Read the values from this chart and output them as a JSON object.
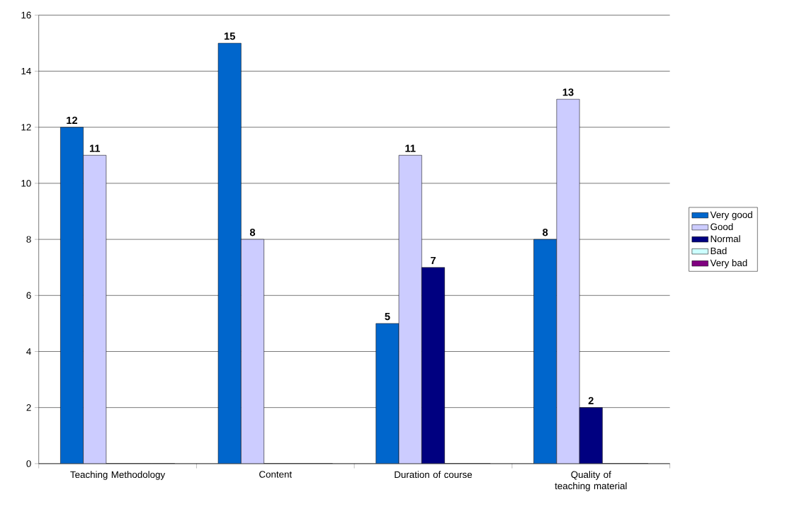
{
  "chart_data": {
    "type": "bar",
    "categories": [
      "Teaching Methodology",
      "Content",
      "Duration of course",
      "Quality of teaching material"
    ],
    "series": [
      {
        "name": "Very good",
        "color": "#0066cc",
        "values": [
          12,
          15,
          5,
          8
        ],
        "value_labels": [
          "12",
          "15",
          "5",
          "8"
        ]
      },
      {
        "name": "Good",
        "color": "#ccccff",
        "values": [
          11,
          8,
          11,
          13
        ],
        "value_labels": [
          "11",
          "8",
          "11",
          "13"
        ]
      },
      {
        "name": "Normal",
        "color": "#000080",
        "values": [
          0,
          0,
          7,
          2
        ],
        "value_labels": [
          null,
          null,
          "7",
          "2"
        ]
      },
      {
        "name": "Bad",
        "color": "#ccffff",
        "values": [
          0,
          0,
          0,
          0
        ],
        "value_labels": [
          null,
          null,
          null,
          null
        ]
      },
      {
        "name": "Very bad",
        "color": "#800080",
        "values": [
          0,
          0,
          0,
          0
        ],
        "value_labels": [
          null,
          null,
          null,
          null
        ]
      }
    ],
    "ylim": [
      0,
      16
    ],
    "yticks": [
      0,
      2,
      4,
      6,
      8,
      10,
      12,
      14,
      16
    ],
    "grid": "y",
    "legend": "right"
  }
}
